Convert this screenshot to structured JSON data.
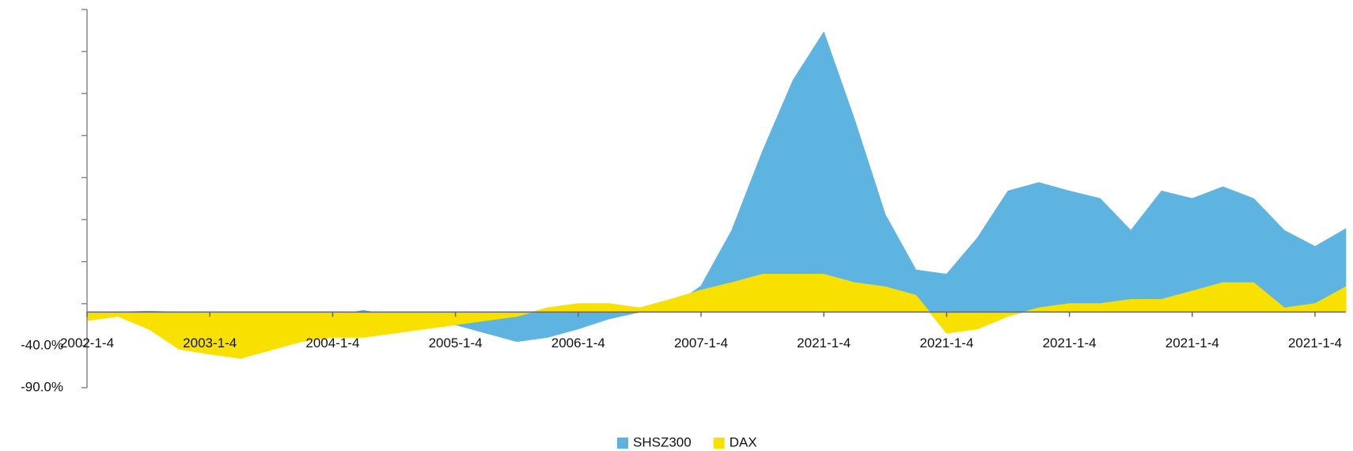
{
  "chart_data": {
    "type": "area",
    "categories": [
      "2002-1-4",
      null,
      null,
      null,
      "2003-1-4",
      null,
      null,
      null,
      "2004-1-4",
      null,
      null,
      null,
      "2005-1-4",
      null,
      null,
      null,
      "2006-1-4",
      null,
      null,
      null,
      "2007-1-4",
      null,
      null,
      null,
      "2021-1-4",
      null,
      null,
      null,
      "2021-1-4",
      null,
      null,
      null,
      "2021-1-4",
      null,
      null,
      null,
      "2021-1-4",
      null,
      null,
      null,
      "2021-1-4",
      null
    ],
    "series": [
      {
        "name": "SHSZ300",
        "color": "#5eb4e0",
        "values": [
          -10,
          0,
          1,
          0,
          -5,
          -10,
          -15,
          -10,
          -5,
          2,
          -5,
          -8,
          -15,
          -25,
          -35,
          -30,
          -20,
          -8,
          0,
          5,
          31,
          97,
          191,
          276,
          333,
          229,
          116,
          50,
          45,
          88,
          144,
          154,
          144,
          135,
          97,
          144,
          135,
          149,
          135,
          97,
          78,
          99
        ]
      },
      {
        "name": "DAX",
        "color": "#f8e000",
        "values": [
          -10,
          -5,
          -20,
          -44,
          -50,
          -55,
          -45,
          -35,
          -30,
          -30,
          -25,
          -20,
          -15,
          -10,
          -5,
          5,
          10,
          10,
          5,
          15,
          26,
          35,
          45,
          45,
          45,
          35,
          30,
          20,
          -25,
          -20,
          -5,
          5,
          10,
          10,
          15,
          15,
          25,
          35,
          35,
          5,
          10,
          30
        ]
      }
    ],
    "ylim": [
      -90,
      360
    ],
    "yticks": [
      {
        "value": -90,
        "label": "-90.0%"
      },
      {
        "value": -40,
        "label": "-40.0%"
      }
    ],
    "minor_yticks": [
      10,
      60,
      110,
      160,
      210,
      260,
      310,
      360
    ],
    "legend": "bottom"
  }
}
